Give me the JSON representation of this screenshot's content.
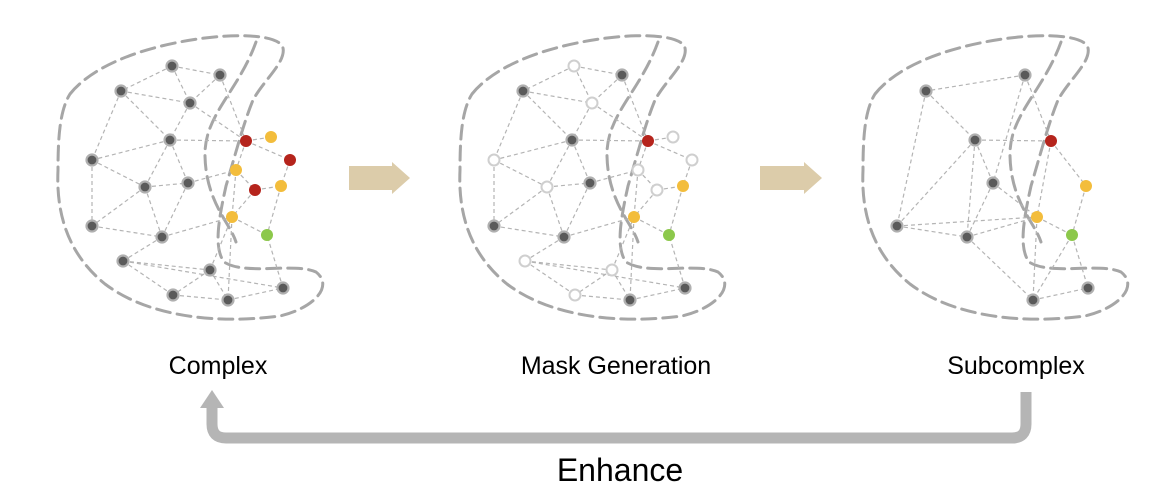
{
  "labels": {
    "complex": "Complex",
    "mask": "Mask Generation",
    "subcomplex": "Subcomplex",
    "enhance": "Enhance"
  },
  "colors": {
    "node_dark": "#5a5a5a",
    "node_ring": "#b0b0b0",
    "red": "#b5241c",
    "yellow": "#f3bd3c",
    "green": "#8cc84b",
    "masked_ring": "#cfcfcf",
    "edge": "#b4b4b4",
    "outline": "#a6a6a6",
    "step_arrow": "#dcccaa",
    "enhance_arrow": "#b5b5b5"
  }
}
